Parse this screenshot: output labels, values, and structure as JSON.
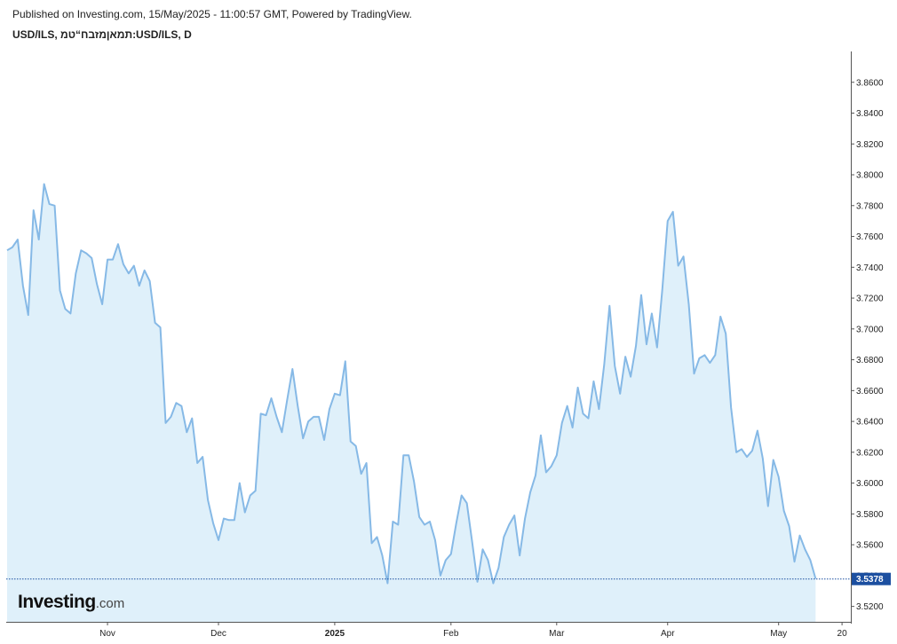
{
  "header": {
    "published": "Published on Investing.com, 15/May/2025 - 11:00:57 GMT, Powered by TradingView.",
    "symbol": "USD/ILS, תמאןמזבח“טמ:USD/ILS, D"
  },
  "logo": {
    "name": "Investing",
    "suffix": ".com"
  },
  "colors": {
    "line": "#86b9e6",
    "fill": "#dff0fa",
    "price_box": "#1c4fa0",
    "axis": "#555555"
  },
  "chart_data": {
    "type": "area",
    "title": "USD/ILS, תמאןמזבח“טמ:USD/ILS, D",
    "xlabel": "",
    "ylabel": "",
    "ylim": [
      3.51,
      3.88
    ],
    "y_ticks": [
      "3.5200",
      "3.5400",
      "3.5600",
      "3.5800",
      "3.6000",
      "3.6200",
      "3.6400",
      "3.6600",
      "3.6800",
      "3.7000",
      "3.7200",
      "3.7400",
      "3.7600",
      "3.7800",
      "3.8000",
      "3.8200",
      "3.8400",
      "3.8600"
    ],
    "x_ticks": [
      {
        "label": "Nov",
        "index": 19
      },
      {
        "label": "Dec",
        "index": 40
      },
      {
        "label": "2025",
        "index": 62,
        "bold": true
      },
      {
        "label": "Feb",
        "index": 84
      },
      {
        "label": "Mar",
        "index": 104
      },
      {
        "label": "Apr",
        "index": 125
      },
      {
        "label": "May",
        "index": 146
      },
      {
        "label": "20",
        "index": 158
      }
    ],
    "last_price": "3.5378",
    "grid": false,
    "series": [
      {
        "values": [
          3.751,
          3.753,
          3.758,
          3.728,
          3.709,
          3.777,
          3.758,
          3.794,
          3.781,
          3.78,
          3.725,
          3.713,
          3.71,
          3.736,
          3.751,
          3.749,
          3.746,
          3.729,
          3.716,
          3.745,
          3.745,
          3.755,
          3.742,
          3.736,
          3.741,
          3.728,
          3.738,
          3.731,
          3.704,
          3.701,
          3.639,
          3.643,
          3.652,
          3.65,
          3.633,
          3.642,
          3.613,
          3.617,
          3.589,
          3.574,
          3.563,
          3.577,
          3.576,
          3.576,
          3.6,
          3.581,
          3.592,
          3.595,
          3.645,
          3.644,
          3.655,
          3.643,
          3.633,
          3.654,
          3.674,
          3.65,
          3.629,
          3.64,
          3.643,
          3.643,
          3.628,
          3.648,
          3.658,
          3.657,
          3.679,
          3.627,
          3.624,
          3.606,
          3.613,
          3.561,
          3.565,
          3.553,
          3.535,
          3.575,
          3.573,
          3.618,
          3.618,
          3.601,
          3.578,
          3.573,
          3.575,
          3.563,
          3.54,
          3.55,
          3.554,
          3.574,
          3.592,
          3.587,
          3.562,
          3.536,
          3.557,
          3.55,
          3.535,
          3.545,
          3.565,
          3.573,
          3.579,
          3.553,
          3.577,
          3.594,
          3.605,
          3.631,
          3.607,
          3.611,
          3.618,
          3.639,
          3.65,
          3.636,
          3.662,
          3.645,
          3.642,
          3.666,
          3.648,
          3.677,
          3.715,
          3.676,
          3.658,
          3.682,
          3.669,
          3.689,
          3.722,
          3.69,
          3.71,
          3.688,
          3.726,
          3.77,
          3.776,
          3.741,
          3.747,
          3.716,
          3.671,
          3.681,
          3.683,
          3.678,
          3.683,
          3.708,
          3.697,
          3.649,
          3.62,
          3.622,
          3.617,
          3.621,
          3.634,
          3.616,
          3.585,
          3.615,
          3.604,
          3.582,
          3.572,
          3.549,
          3.566,
          3.557,
          3.55,
          3.538
        ]
      }
    ]
  }
}
